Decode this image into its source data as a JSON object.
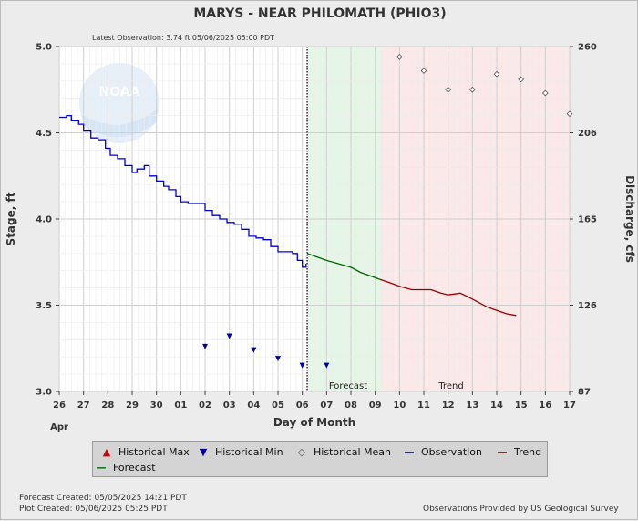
{
  "chart_data": {
    "type": "line",
    "title": "MARYS - NEAR PHILOMATH  (PHIO3)",
    "subtitle": "Latest Observation: 3.74 ft 05/06/2025 05:00 PDT",
    "xlabel": "Day of Month",
    "month_label": "Apr",
    "ylabel": "Stage, ft",
    "y2label": "Discharge, cfs",
    "x_ticks": [
      "26",
      "27",
      "28",
      "29",
      "30",
      "01",
      "02",
      "03",
      "04",
      "05",
      "06",
      "07",
      "08",
      "09",
      "10",
      "11",
      "12",
      "13",
      "14",
      "15",
      "16",
      "17"
    ],
    "y_ticks": [
      "5.0",
      "4.5",
      "4.0",
      "3.5",
      "3.0"
    ],
    "y_tick_values": [
      5.0,
      4.5,
      4.0,
      3.5,
      3.0
    ],
    "y2_ticks": [
      "260",
      "206",
      "165",
      "126",
      "87"
    ],
    "ylim": [
      3.0,
      5.0
    ],
    "xlim": [
      0,
      21
    ],
    "latest_observation_x": 10.2,
    "forecast_region": [
      10.2,
      13.2
    ],
    "trend_region": [
      13.2,
      21
    ],
    "region_labels": {
      "forecast": "Forecast",
      "trend": "Trend"
    },
    "series": [
      {
        "name": "Observation",
        "color": "#0000cc",
        "points": [
          [
            0.0,
            4.59
          ],
          [
            0.3,
            4.6
          ],
          [
            0.5,
            4.57
          ],
          [
            0.8,
            4.55
          ],
          [
            1.0,
            4.51
          ],
          [
            1.3,
            4.47
          ],
          [
            1.6,
            4.46
          ],
          [
            1.9,
            4.41
          ],
          [
            2.1,
            4.37
          ],
          [
            2.4,
            4.35
          ],
          [
            2.7,
            4.31
          ],
          [
            3.0,
            4.27
          ],
          [
            3.2,
            4.29
          ],
          [
            3.5,
            4.31
          ],
          [
            3.7,
            4.25
          ],
          [
            4.0,
            4.22
          ],
          [
            4.3,
            4.19
          ],
          [
            4.5,
            4.17
          ],
          [
            4.8,
            4.13
          ],
          [
            5.0,
            4.1
          ],
          [
            5.3,
            4.09
          ],
          [
            5.7,
            4.09
          ],
          [
            6.0,
            4.05
          ],
          [
            6.3,
            4.02
          ],
          [
            6.6,
            4.0
          ],
          [
            6.9,
            3.98
          ],
          [
            7.2,
            3.97
          ],
          [
            7.5,
            3.94
          ],
          [
            7.8,
            3.9
          ],
          [
            8.1,
            3.89
          ],
          [
            8.4,
            3.88
          ],
          [
            8.7,
            3.84
          ],
          [
            9.0,
            3.81
          ],
          [
            9.3,
            3.81
          ],
          [
            9.6,
            3.8
          ],
          [
            9.8,
            3.76
          ],
          [
            10.0,
            3.72
          ],
          [
            10.15,
            3.74
          ]
        ]
      },
      {
        "name": "Forecast",
        "color": "#006600",
        "points": [
          [
            10.2,
            3.8
          ],
          [
            10.6,
            3.78
          ],
          [
            11.0,
            3.76
          ],
          [
            11.5,
            3.74
          ],
          [
            12.0,
            3.72
          ],
          [
            12.4,
            3.69
          ],
          [
            12.8,
            3.67
          ],
          [
            13.2,
            3.65
          ]
        ]
      },
      {
        "name": "Trend",
        "color": "#990000",
        "points": [
          [
            13.2,
            3.65
          ],
          [
            13.6,
            3.63
          ],
          [
            14.0,
            3.61
          ],
          [
            14.5,
            3.59
          ],
          [
            15.0,
            3.59
          ],
          [
            15.3,
            3.59
          ],
          [
            15.7,
            3.57
          ],
          [
            16.0,
            3.56
          ],
          [
            16.5,
            3.57
          ],
          [
            16.8,
            3.55
          ],
          [
            17.2,
            3.52
          ],
          [
            17.6,
            3.49
          ],
          [
            18.0,
            3.47
          ],
          [
            18.4,
            3.45
          ],
          [
            18.8,
            3.44
          ]
        ]
      }
    ],
    "historical_min": {
      "name": "Historical Min",
      "color": "#000099",
      "points": [
        [
          6.0,
          3.26
        ],
        [
          7.0,
          3.32
        ],
        [
          8.0,
          3.24
        ],
        [
          9.0,
          3.19
        ],
        [
          10.0,
          3.15
        ],
        [
          11.0,
          3.15
        ]
      ]
    },
    "historical_mean": {
      "name": "Historical Mean",
      "color": "#555555",
      "points": [
        [
          14.0,
          4.94
        ],
        [
          15.0,
          4.86
        ],
        [
          16.0,
          4.75
        ],
        [
          17.0,
          4.75
        ],
        [
          18.0,
          4.84
        ],
        [
          19.0,
          4.81
        ],
        [
          20.0,
          4.73
        ],
        [
          21.0,
          4.61
        ]
      ]
    },
    "legend": [
      {
        "key": "hist_max",
        "label": "Historical Max",
        "symbol": "▲",
        "color": "#cc0000"
      },
      {
        "key": "hist_min",
        "label": "Historical Min",
        "symbol": "▼",
        "color": "#000099"
      },
      {
        "key": "hist_mean",
        "label": "Historical Mean",
        "symbol": "◇",
        "color": "#555555"
      },
      {
        "key": "observation",
        "label": "Observation",
        "symbol": "—",
        "color": "#0000cc"
      },
      {
        "key": "trend",
        "label": "Trend",
        "symbol": "—",
        "color": "#990000"
      },
      {
        "key": "forecast",
        "label": "Forecast",
        "symbol": "—",
        "color": "#006600"
      }
    ],
    "grid": true,
    "logo_text": "NOAA"
  },
  "footer": {
    "forecast_created": "Forecast Created: 05/05/2025 14:21 PDT",
    "plot_created": "Plot Created: 05/06/2025 05:25 PDT",
    "provider": "Observations Provided by US Geological Survey"
  }
}
